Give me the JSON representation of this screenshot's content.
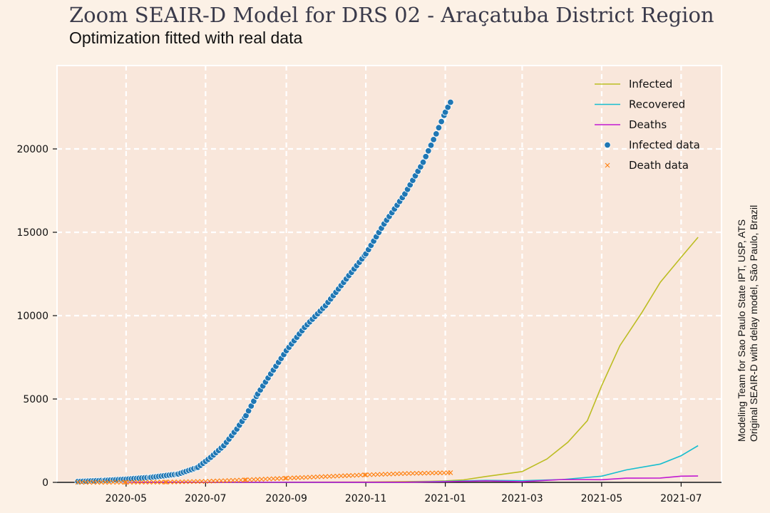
{
  "title": "Zoom SEAIR-D Model for DRS 02 - Araçatuba District Region",
  "subtitle": "Optimization fitted with real data",
  "credit": {
    "line1": "Modeling Team for Sao Paulo State IPT, USP, ATS",
    "line2": "Original SEAIR-D with delay model, São Paulo, Brazil"
  },
  "colors": {
    "background": "#fcf1e6",
    "plot_area": "#f9e7db",
    "infected": "#bcbd22",
    "recovered": "#17becf",
    "deaths": "#c21ad1",
    "infected_data": "#1f77b4",
    "death_data": "#ff7f0e"
  },
  "chart_data": {
    "type": "line",
    "title": "Zoom SEAIR-D Model for DRS 02 - Araçatuba District Region",
    "subtitle": "Optimization fitted with real data",
    "xlabel": "",
    "ylabel": "",
    "x_axis_type": "date",
    "xlim": [
      "2020-03-09",
      "2021-08-01"
    ],
    "ylim": [
      0,
      25000
    ],
    "x_ticks": [
      "2020-05",
      "2020-07",
      "2020-09",
      "2020-11",
      "2021-01",
      "2021-03",
      "2021-05",
      "2021-07"
    ],
    "y_ticks": [
      0,
      5000,
      10000,
      15000,
      20000
    ],
    "grid": true,
    "legend_position": "top-right",
    "series": [
      {
        "name": "Infected",
        "style": "line",
        "points": [
          [
            "2020-03-25",
            0
          ],
          [
            "2020-05-01",
            0
          ],
          [
            "2020-07-01",
            0
          ],
          [
            "2020-11-01",
            20
          ],
          [
            "2020-12-20",
            60
          ],
          [
            "2021-01-01",
            90
          ],
          [
            "2021-01-15",
            150
          ],
          [
            "2021-02-01",
            350
          ],
          [
            "2021-03-01",
            650
          ],
          [
            "2021-03-20",
            1400
          ],
          [
            "2021-04-05",
            2400
          ],
          [
            "2021-04-20",
            3700
          ],
          [
            "2021-05-01",
            5800
          ],
          [
            "2021-05-15",
            8200
          ],
          [
            "2021-06-01",
            10200
          ],
          [
            "2021-06-15",
            12000
          ],
          [
            "2021-07-01",
            13500
          ],
          [
            "2021-07-14",
            14700
          ]
        ]
      },
      {
        "name": "Recovered",
        "style": "line",
        "points": [
          [
            "2020-03-25",
            0
          ],
          [
            "2020-12-01",
            10
          ],
          [
            "2021-01-01",
            60
          ],
          [
            "2021-02-01",
            120
          ],
          [
            "2021-03-01",
            100
          ],
          [
            "2021-04-01",
            170
          ],
          [
            "2021-05-01",
            370
          ],
          [
            "2021-05-20",
            750
          ],
          [
            "2021-06-15",
            1100
          ],
          [
            "2021-07-01",
            1600
          ],
          [
            "2021-07-14",
            2200
          ]
        ]
      },
      {
        "name": "Deaths",
        "style": "line",
        "points": [
          [
            "2020-03-25",
            0
          ],
          [
            "2020-12-01",
            10
          ],
          [
            "2021-01-01",
            40
          ],
          [
            "2021-02-01",
            90
          ],
          [
            "2021-03-01",
            40
          ],
          [
            "2021-04-01",
            170
          ],
          [
            "2021-05-01",
            160
          ],
          [
            "2021-05-20",
            250
          ],
          [
            "2021-06-15",
            260
          ],
          [
            "2021-07-01",
            370
          ],
          [
            "2021-07-14",
            380
          ]
        ]
      },
      {
        "name": "Infected data",
        "style": "scatter",
        "points": [
          [
            "2020-03-25",
            50
          ],
          [
            "2020-04-15",
            120
          ],
          [
            "2020-05-01",
            190
          ],
          [
            "2020-05-20",
            300
          ],
          [
            "2020-06-10",
            500
          ],
          [
            "2020-06-25",
            900
          ],
          [
            "2020-07-05",
            1500
          ],
          [
            "2020-07-15",
            2200
          ],
          [
            "2020-07-25",
            3200
          ],
          [
            "2020-08-01",
            4000
          ],
          [
            "2020-08-10",
            5300
          ],
          [
            "2020-08-20",
            6500
          ],
          [
            "2020-09-01",
            7900
          ],
          [
            "2020-09-15",
            9300
          ],
          [
            "2020-10-01",
            10600
          ],
          [
            "2020-10-15",
            12000
          ],
          [
            "2020-11-01",
            13700
          ],
          [
            "2020-11-15",
            15500
          ],
          [
            "2020-12-01",
            17300
          ],
          [
            "2020-12-15",
            19200
          ],
          [
            "2020-12-25",
            20900
          ],
          [
            "2021-01-01",
            22200
          ],
          [
            "2021-01-05",
            22800
          ]
        ]
      },
      {
        "name": "Death data",
        "style": "scatter",
        "points": [
          [
            "2020-03-25",
            0
          ],
          [
            "2020-05-01",
            5
          ],
          [
            "2020-06-01",
            15
          ],
          [
            "2020-07-01",
            60
          ],
          [
            "2020-08-01",
            150
          ],
          [
            "2020-09-01",
            250
          ],
          [
            "2020-10-01",
            350
          ],
          [
            "2020-11-01",
            450
          ],
          [
            "2020-12-01",
            530
          ],
          [
            "2021-01-05",
            580
          ]
        ]
      }
    ]
  }
}
